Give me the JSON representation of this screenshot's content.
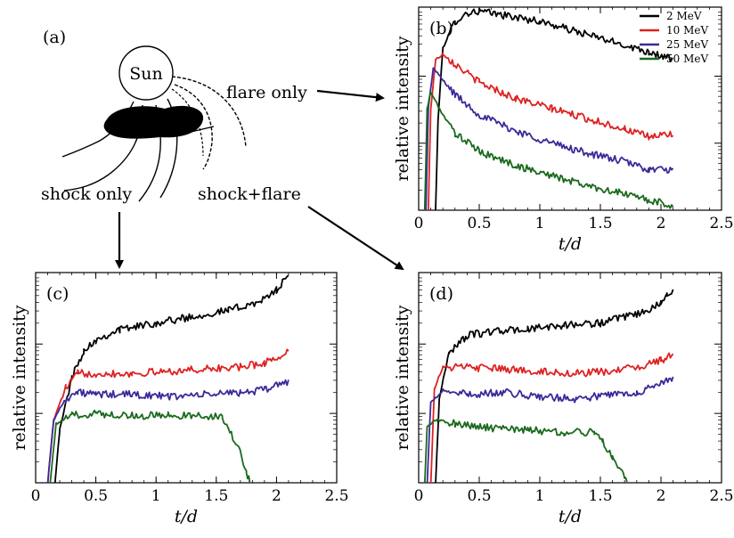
{
  "diagram": {
    "panel_tag": "(a)",
    "sun_label": "Sun",
    "flare_label": "flare only",
    "shock_label": "shock only",
    "shock_flare_label": "shock+flare"
  },
  "chart_data": [
    {
      "panel": "(b)",
      "type": "line",
      "xlabel": "t/d",
      "ylabel": "relative intensity",
      "xlim": [
        0,
        2.5
      ],
      "ylim": [
        0,
        1
      ],
      "yscale": "log",
      "x_ticks": [
        "0",
        "0.5",
        "1",
        "1.5",
        "2",
        "2.5"
      ],
      "legend": "top-right",
      "series": [
        {
          "name": "2 MeV",
          "color": "#000000",
          "onset": 0.14,
          "points": [
            [
              0.14,
              0.0
            ],
            [
              0.16,
              0.45
            ],
            [
              0.2,
              0.8
            ],
            [
              0.3,
              0.93
            ],
            [
              0.4,
              0.97
            ],
            [
              0.5,
              0.98
            ],
            [
              0.7,
              0.96
            ],
            [
              1.0,
              0.93
            ],
            [
              1.3,
              0.88
            ],
            [
              1.6,
              0.83
            ],
            [
              1.9,
              0.78
            ],
            [
              2.1,
              0.74
            ]
          ]
        },
        {
          "name": "10 MeV",
          "color": "#dd2222",
          "onset": 0.08,
          "points": [
            [
              0.08,
              0.0
            ],
            [
              0.1,
              0.5
            ],
            [
              0.14,
              0.74
            ],
            [
              0.2,
              0.77
            ],
            [
              0.3,
              0.72
            ],
            [
              0.5,
              0.63
            ],
            [
              0.8,
              0.55
            ],
            [
              1.1,
              0.5
            ],
            [
              1.4,
              0.45
            ],
            [
              1.7,
              0.4
            ],
            [
              1.9,
              0.36
            ],
            [
              2.1,
              0.38
            ]
          ]
        },
        {
          "name": "25 MeV",
          "color": "#3a2a99",
          "onset": 0.06,
          "points": [
            [
              0.06,
              0.0
            ],
            [
              0.08,
              0.5
            ],
            [
              0.12,
              0.7
            ],
            [
              0.2,
              0.64
            ],
            [
              0.3,
              0.57
            ],
            [
              0.5,
              0.47
            ],
            [
              0.8,
              0.39
            ],
            [
              1.1,
              0.33
            ],
            [
              1.4,
              0.28
            ],
            [
              1.7,
              0.24
            ],
            [
              1.9,
              0.2
            ],
            [
              2.1,
              0.2
            ]
          ]
        },
        {
          "name": "50 MeV",
          "color": "#1a6a1e",
          "onset": 0.05,
          "points": [
            [
              0.05,
              0.0
            ],
            [
              0.07,
              0.5
            ],
            [
              0.1,
              0.58
            ],
            [
              0.2,
              0.47
            ],
            [
              0.3,
              0.38
            ],
            [
              0.5,
              0.29
            ],
            [
              0.8,
              0.22
            ],
            [
              1.1,
              0.17
            ],
            [
              1.4,
              0.12
            ],
            [
              1.7,
              0.08
            ],
            [
              1.9,
              0.05
            ],
            [
              2.1,
              0.02
            ]
          ]
        }
      ]
    },
    {
      "panel": "(c)",
      "type": "line",
      "xlabel": "t/d",
      "ylabel": "relative intensity",
      "xlim": [
        0,
        2.5
      ],
      "ylim": [
        0,
        1
      ],
      "yscale": "log",
      "x_ticks": [
        "0",
        "0.5",
        "1",
        "1.5",
        "2",
        "2.5"
      ],
      "series": [
        {
          "name": "2 MeV",
          "color": "#000000",
          "onset": 0.16,
          "points": [
            [
              0.16,
              0.0
            ],
            [
              0.2,
              0.25
            ],
            [
              0.3,
              0.5
            ],
            [
              0.4,
              0.63
            ],
            [
              0.5,
              0.68
            ],
            [
              0.7,
              0.73
            ],
            [
              1.0,
              0.76
            ],
            [
              1.3,
              0.79
            ],
            [
              1.6,
              0.82
            ],
            [
              1.9,
              0.87
            ],
            [
              2.0,
              0.92
            ],
            [
              2.1,
              0.98
            ]
          ]
        },
        {
          "name": "10 MeV",
          "color": "#dd2222",
          "onset": 0.1,
          "points": [
            [
              0.1,
              0.0
            ],
            [
              0.15,
              0.3
            ],
            [
              0.25,
              0.45
            ],
            [
              0.35,
              0.52
            ],
            [
              0.5,
              0.52
            ],
            [
              0.8,
              0.52
            ],
            [
              1.1,
              0.53
            ],
            [
              1.4,
              0.54
            ],
            [
              1.7,
              0.55
            ],
            [
              1.9,
              0.57
            ],
            [
              2.1,
              0.62
            ]
          ]
        },
        {
          "name": "25 MeV",
          "color": "#3a2a99",
          "onset": 0.1,
          "points": [
            [
              0.1,
              0.0
            ],
            [
              0.15,
              0.3
            ],
            [
              0.25,
              0.4
            ],
            [
              0.35,
              0.43
            ],
            [
              0.5,
              0.42
            ],
            [
              0.8,
              0.42
            ],
            [
              1.1,
              0.41
            ],
            [
              1.4,
              0.42
            ],
            [
              1.7,
              0.43
            ],
            [
              1.9,
              0.44
            ],
            [
              2.0,
              0.47
            ],
            [
              2.1,
              0.48
            ]
          ]
        },
        {
          "name": "50 MeV",
          "color": "#1a6a1e",
          "onset": 0.12,
          "points": [
            [
              0.12,
              0.0
            ],
            [
              0.17,
              0.28
            ],
            [
              0.3,
              0.32
            ],
            [
              0.5,
              0.33
            ],
            [
              0.8,
              0.32
            ],
            [
              1.1,
              0.32
            ],
            [
              1.4,
              0.32
            ],
            [
              1.55,
              0.31
            ],
            [
              1.6,
              0.26
            ],
            [
              1.7,
              0.14
            ],
            [
              1.75,
              0.05
            ],
            [
              1.78,
              0.0
            ]
          ]
        }
      ]
    },
    {
      "panel": "(d)",
      "type": "line",
      "xlabel": "t/d",
      "ylabel": "relative intensity",
      "xlim": [
        0,
        2.5
      ],
      "ylim": [
        0,
        1
      ],
      "yscale": "log",
      "x_ticks": [
        "0",
        "0.5",
        "1",
        "1.5",
        "2",
        "2.5"
      ],
      "series": [
        {
          "name": "2 MeV",
          "color": "#000000",
          "onset": 0.14,
          "points": [
            [
              0.14,
              0.0
            ],
            [
              0.17,
              0.4
            ],
            [
              0.25,
              0.62
            ],
            [
              0.4,
              0.7
            ],
            [
              0.6,
              0.72
            ],
            [
              0.9,
              0.73
            ],
            [
              1.2,
              0.75
            ],
            [
              1.5,
              0.76
            ],
            [
              1.8,
              0.8
            ],
            [
              2.0,
              0.85
            ],
            [
              2.05,
              0.9
            ],
            [
              2.1,
              0.92
            ]
          ]
        },
        {
          "name": "10 MeV",
          "color": "#dd2222",
          "onset": 0.1,
          "points": [
            [
              0.1,
              0.0
            ],
            [
              0.13,
              0.45
            ],
            [
              0.2,
              0.55
            ],
            [
              0.4,
              0.55
            ],
            [
              0.7,
              0.54
            ],
            [
              1.0,
              0.53
            ],
            [
              1.3,
              0.52
            ],
            [
              1.6,
              0.53
            ],
            [
              1.8,
              0.55
            ],
            [
              2.0,
              0.58
            ],
            [
              2.1,
              0.62
            ]
          ]
        },
        {
          "name": "25 MeV",
          "color": "#3a2a99",
          "onset": 0.07,
          "points": [
            [
              0.07,
              0.0
            ],
            [
              0.1,
              0.38
            ],
            [
              0.2,
              0.44
            ],
            [
              0.4,
              0.42
            ],
            [
              0.7,
              0.43
            ],
            [
              1.0,
              0.41
            ],
            [
              1.3,
              0.4
            ],
            [
              1.6,
              0.42
            ],
            [
              1.8,
              0.43
            ],
            [
              2.0,
              0.47
            ],
            [
              2.1,
              0.5
            ]
          ]
        },
        {
          "name": "50 MeV",
          "color": "#1a6a1e",
          "onset": 0.05,
          "points": [
            [
              0.05,
              0.0
            ],
            [
              0.07,
              0.27
            ],
            [
              0.15,
              0.3
            ],
            [
              0.3,
              0.28
            ],
            [
              0.6,
              0.26
            ],
            [
              0.9,
              0.25
            ],
            [
              1.2,
              0.24
            ],
            [
              1.45,
              0.24
            ],
            [
              1.52,
              0.2
            ],
            [
              1.6,
              0.12
            ],
            [
              1.7,
              0.03
            ],
            [
              1.72,
              0.0
            ]
          ]
        }
      ]
    }
  ]
}
